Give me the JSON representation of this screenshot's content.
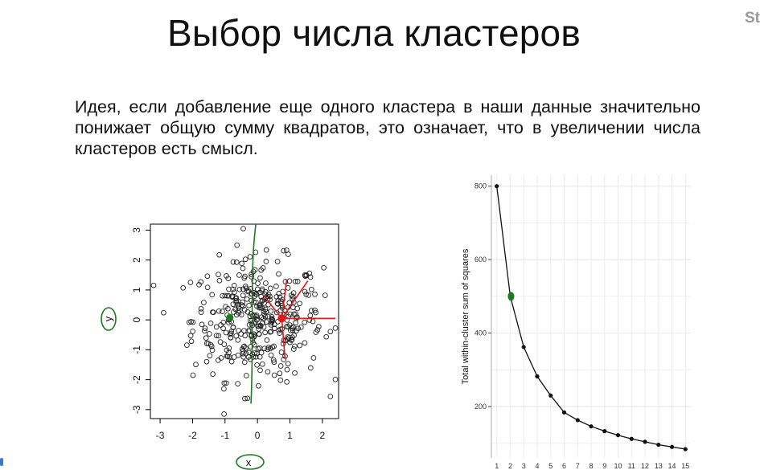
{
  "slide": {
    "title": "Выбор числа кластеров",
    "corner_fragment": "St",
    "body": "Идея, если добавление еще одного кластера в наши данные значительно понижает общую сумму квадратов, это означает, что в увеличении числа кластеров есть смысл."
  },
  "colors": {
    "text": "#111111",
    "annotation_green": "#1f7a1f",
    "centroid_red": "#e01818",
    "grid": "#ebebeb"
  },
  "chart_data": [
    {
      "type": "scatter",
      "title": "",
      "xlabel": "",
      "ylabel": "",
      "xlim": [
        -3.3,
        2.5
      ],
      "ylim": [
        -3.3,
        3.2
      ],
      "x_ticks": [
        "-3",
        "-2",
        "-1",
        "0",
        "1",
        "2"
      ],
      "y_ticks": [
        "-3",
        "-2",
        "-1",
        "0",
        "1",
        "2",
        "3"
      ],
      "points_description": "about 400 points drawn from a standard bivariate normal distribution, open circles",
      "point_count": 400,
      "annotations": {
        "x_label_handwritten": "x",
        "y_label_handwritten": "y",
        "green_centroid": [
          -0.85,
          0.08
        ],
        "red_centroid": [
          0.75,
          0.05
        ],
        "green_split_line": [
          [
            -0.05,
            3.2
          ],
          [
            -0.2,
            -2.8
          ]
        ]
      }
    },
    {
      "type": "line",
      "title": "",
      "xlabel": "",
      "ylabel": "Total within-cluster sum of squares",
      "x": [
        1,
        2,
        3,
        4,
        5,
        6,
        7,
        8,
        9,
        10,
        11,
        12,
        13,
        14,
        15
      ],
      "y": [
        800,
        500,
        362,
        282,
        230,
        184,
        163,
        146,
        133,
        122,
        112,
        104,
        96,
        90,
        84
      ],
      "y_ticks": [
        200,
        400,
        600,
        800
      ],
      "xlim": [
        0.6,
        15.4
      ],
      "ylim": [
        60,
        830
      ],
      "grid": true,
      "highlighted_point": {
        "x": 2,
        "y": 500
      }
    }
  ]
}
